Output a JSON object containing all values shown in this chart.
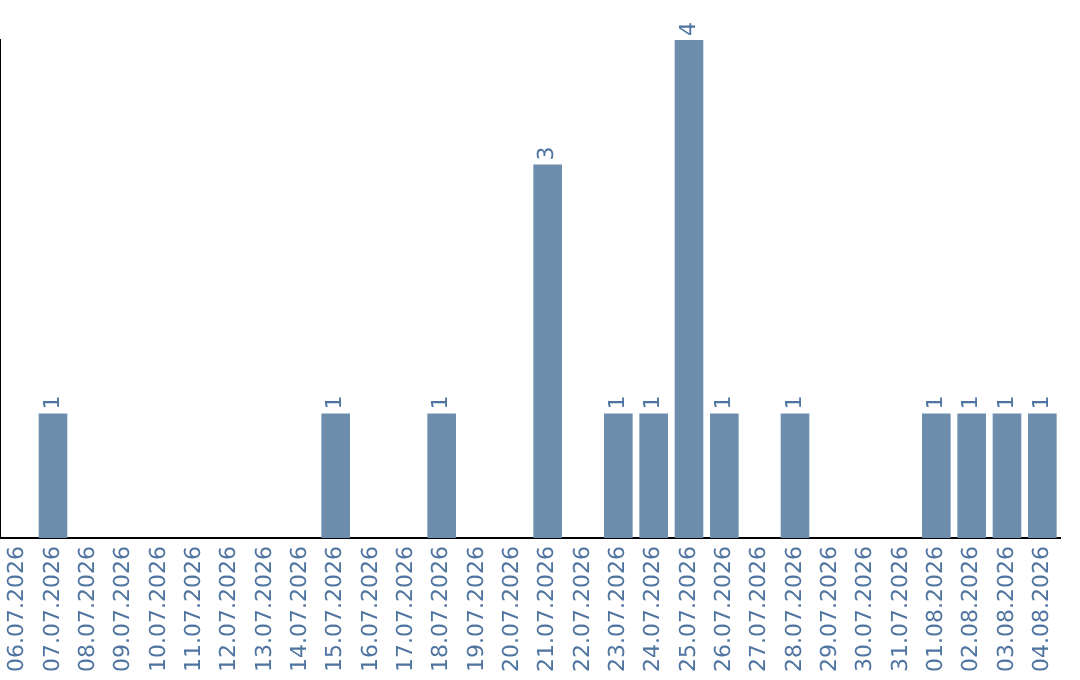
{
  "chart_data": {
    "type": "bar",
    "categories": [
      "06.07.2026",
      "07.07.2026",
      "08.07.2026",
      "09.07.2026",
      "10.07.2026",
      "11.07.2026",
      "12.07.2026",
      "13.07.2026",
      "14.07.2026",
      "15.07.2026",
      "16.07.2026",
      "17.07.2026",
      "18.07.2026",
      "19.07.2026",
      "20.07.2026",
      "21.07.2026",
      "22.07.2026",
      "23.07.2026",
      "24.07.2026",
      "25.07.2026",
      "26.07.2026",
      "27.07.2026",
      "28.07.2026",
      "29.07.2026",
      "30.07.2026",
      "31.07.2026",
      "01.08.2026",
      "02.08.2026",
      "03.08.2026",
      "04.08.2026"
    ],
    "values": [
      0,
      1,
      0,
      0,
      0,
      0,
      0,
      0,
      0,
      1,
      0,
      0,
      1,
      0,
      0,
      3,
      0,
      1,
      1,
      4,
      1,
      0,
      1,
      0,
      0,
      0,
      1,
      1,
      1,
      1
    ],
    "value_labels": [
      null,
      "1",
      null,
      null,
      null,
      null,
      null,
      null,
      null,
      "1",
      null,
      null,
      "1",
      null,
      null,
      "3",
      null,
      "1",
      "1",
      "4",
      "1",
      null,
      "1",
      null,
      null,
      null,
      "1",
      "1",
      "1",
      "1"
    ],
    "color": "#6d8dad",
    "grid": false,
    "legend": false
  }
}
